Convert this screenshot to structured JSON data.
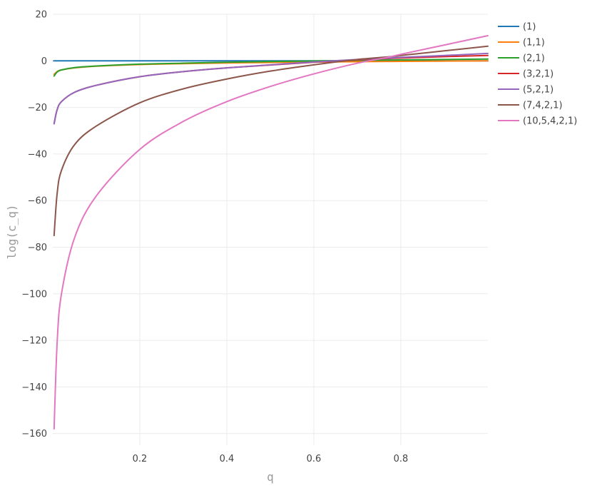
{
  "chart_data": {
    "type": "line",
    "xlabel": "q",
    "ylabel": "log(c_q)",
    "xlim": [
      0.0,
      1.0
    ],
    "ylim": [
      -165,
      20
    ],
    "x_ticks": [
      0.2,
      0.4,
      0.6,
      0.8
    ],
    "x_tick_labels": [
      "0.2",
      "0.4",
      "0.6",
      "0.8"
    ],
    "y_ticks": [
      20,
      0,
      -20,
      -40,
      -60,
      -80,
      -100,
      -120,
      -140,
      -160
    ],
    "y_tick_labels": [
      "20",
      "0",
      "−20",
      "−40",
      "−60",
      "−80",
      "−100",
      "−120",
      "−140",
      "−160"
    ],
    "grid": true,
    "legend_position": "top-right",
    "x": [
      0.003,
      0.01,
      0.02,
      0.05,
      0.1,
      0.2,
      0.3,
      0.4,
      0.5,
      0.6,
      0.7,
      0.77,
      0.8,
      0.9,
      1.0
    ],
    "series": [
      {
        "name": "(1)",
        "color": "#1f77b4",
        "values": [
          0,
          0,
          0,
          0,
          0,
          0,
          0,
          0,
          0,
          0,
          0,
          0,
          0,
          0,
          0
        ]
      },
      {
        "name": "(1,1)",
        "color": "#ff7f0e",
        "values": [
          -5.8,
          -4.6,
          -3.9,
          -3.0,
          -2.3,
          -1.6,
          -1.2,
          -0.9,
          -0.7,
          -0.5,
          -0.35,
          -0.26,
          -0.22,
          -0.1,
          0.0
        ]
      },
      {
        "name": "(2,1)",
        "color": "#2ca02c",
        "values": [
          -6.5,
          -4.8,
          -3.9,
          -2.9,
          -2.2,
          -1.4,
          -1.0,
          -0.6,
          -0.3,
          -0.05,
          0.2,
          0.35,
          0.4,
          0.6,
          0.8
        ]
      },
      {
        "name": "(3,2,1)",
        "color": "#d62728",
        "values": [
          -27.0,
          -21.0,
          -17.5,
          -13.5,
          -10.5,
          -6.8,
          -4.6,
          -3.0,
          -1.8,
          -0.6,
          0.4,
          1.0,
          1.2,
          1.8,
          2.3
        ]
      },
      {
        "name": "(5,2,1)",
        "color": "#9467bd",
        "values": [
          -27.0,
          -21.0,
          -17.5,
          -13.5,
          -10.5,
          -6.8,
          -4.6,
          -3.0,
          -1.7,
          -0.5,
          0.6,
          1.2,
          1.5,
          2.3,
          3.2
        ]
      },
      {
        "name": "(7,4,2,1)",
        "color": "#8c564b",
        "values": [
          -75.0,
          -57.0,
          -47.0,
          -36.0,
          -28.0,
          -18.0,
          -12.0,
          -7.8,
          -4.4,
          -1.7,
          0.6,
          1.7,
          2.3,
          4.3,
          6.3
        ]
      },
      {
        "name": "(10,5,4,2,1)",
        "color": "#e377c2",
        "values": [
          -158.0,
          -121.0,
          -100.0,
          -76.0,
          -58.0,
          -38.0,
          -26.0,
          -17.5,
          -11.0,
          -5.6,
          -1.0,
          1.5,
          2.8,
          6.8,
          10.8
        ]
      }
    ]
  }
}
